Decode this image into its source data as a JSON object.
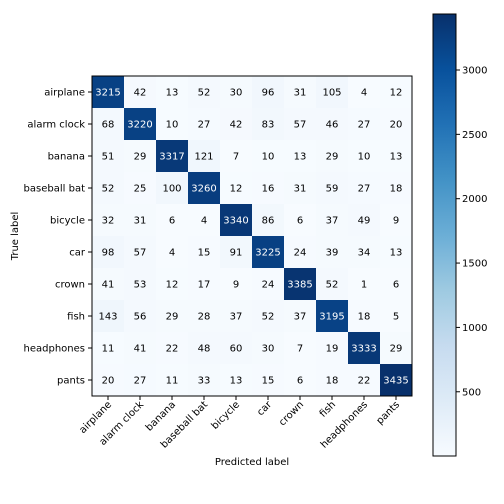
{
  "chart_data": {
    "type": "heatmap",
    "title": "",
    "xlabel": "Predicted label",
    "ylabel": "True label",
    "rows": [
      "airplane",
      "alarm clock",
      "banana",
      "baseball bat",
      "bicycle",
      "car",
      "crown",
      "fish",
      "headphones",
      "pants"
    ],
    "columns": [
      "airplane",
      "alarm clock",
      "banana",
      "baseball bat",
      "bicycle",
      "car",
      "crown",
      "fish",
      "headphones",
      "pants"
    ],
    "values": [
      [
        3215,
        42,
        13,
        52,
        30,
        96,
        31,
        105,
        4,
        12
      ],
      [
        68,
        3220,
        10,
        27,
        42,
        83,
        57,
        46,
        27,
        20
      ],
      [
        51,
        29,
        3317,
        121,
        7,
        10,
        13,
        29,
        10,
        13
      ],
      [
        52,
        25,
        100,
        3260,
        12,
        16,
        31,
        59,
        27,
        18
      ],
      [
        32,
        31,
        6,
        4,
        3340,
        86,
        6,
        37,
        49,
        9
      ],
      [
        98,
        57,
        4,
        15,
        91,
        3225,
        24,
        39,
        34,
        13
      ],
      [
        41,
        53,
        12,
        17,
        9,
        24,
        3385,
        52,
        1,
        6
      ],
      [
        143,
        56,
        29,
        28,
        37,
        52,
        37,
        3195,
        18,
        5
      ],
      [
        11,
        41,
        22,
        48,
        60,
        30,
        7,
        19,
        3333,
        29
      ],
      [
        20,
        27,
        11,
        33,
        13,
        15,
        6,
        18,
        22,
        3435
      ]
    ],
    "colormap": "Blues",
    "color_range": [
      1,
      3435
    ],
    "colorbar_ticks": [
      500,
      1000,
      1500,
      2000,
      2500,
      3000
    ],
    "text_color_dark": "#000000",
    "text_color_light": "#ffffff"
  }
}
